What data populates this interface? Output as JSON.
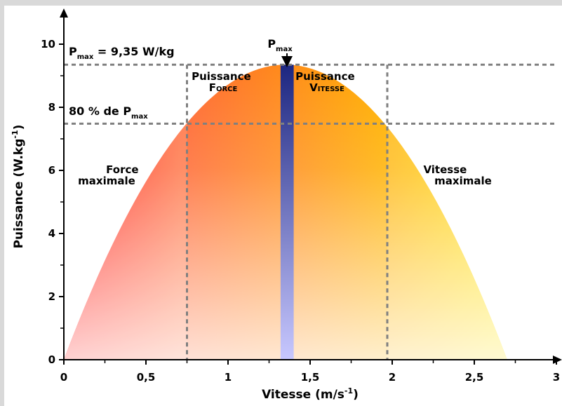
{
  "chart_data": {
    "type": "area",
    "xlabel_main": "Vitesse (m/s",
    "xlabel_sup": "-1",
    "xlabel_end": ")",
    "ylabel_main": "Puissance (W.kg",
    "ylabel_sup": "-1",
    "ylabel_end": ")",
    "xlim": [
      0,
      3
    ],
    "ylim": [
      0,
      10.5
    ],
    "x_ticks": [
      {
        "v": 0,
        "label": "0"
      },
      {
        "v": 0.5,
        "label": "0,5"
      },
      {
        "v": 1,
        "label": "1"
      },
      {
        "v": 1.5,
        "label": "1,5"
      },
      {
        "v": 2,
        "label": "2"
      },
      {
        "v": 2.5,
        "label": "2,5"
      },
      {
        "v": 3,
        "label": "3"
      }
    ],
    "x_minor_ticks": [
      0.25,
      0.75,
      1.25,
      1.75,
      2.25,
      2.75
    ],
    "y_ticks": [
      {
        "v": 0,
        "label": "0"
      },
      {
        "v": 2,
        "label": "2"
      },
      {
        "v": 4,
        "label": "4"
      },
      {
        "v": 6,
        "label": "6"
      },
      {
        "v": 8,
        "label": "8"
      },
      {
        "v": 10,
        "label": "10"
      }
    ],
    "y_minor_ticks": [
      1,
      3,
      5,
      7,
      9
    ],
    "curve": {
      "v0": 2.7,
      "pmax": 9.35,
      "vopt": 1.35
    },
    "pmax_band": [
      1.32,
      1.4
    ],
    "v80_low": 0.75,
    "v80_high": 1.97,
    "p80": 7.48,
    "annotations": {
      "pmax_value": {
        "main": "P",
        "sub": "max",
        "rest": " = 9,35 W/kg"
      },
      "p80": {
        "main": "80 % de P",
        "sub": "max"
      },
      "pmax_top": {
        "main": "P",
        "sub": "max"
      },
      "force_max": [
        "Force",
        "maximale"
      ],
      "vitesse_max": [
        "Vitesse",
        "maximale"
      ],
      "puissance_force": {
        "line1": "Puissance",
        "cap": "F",
        "small": "ORCE"
      },
      "puissance_vitesse": {
        "line1": "Puissance",
        "cap": "V",
        "small": "ITESSE"
      }
    },
    "colors": {
      "left": "#ff0000",
      "left_mid": "#ff6633",
      "mid": "#ff8c1a",
      "right_mid": "#ffb000",
      "right": "#ffe600",
      "band": "#1c2680",
      "band_light": "#c8c8ff",
      "dashes": "#808080"
    }
  }
}
